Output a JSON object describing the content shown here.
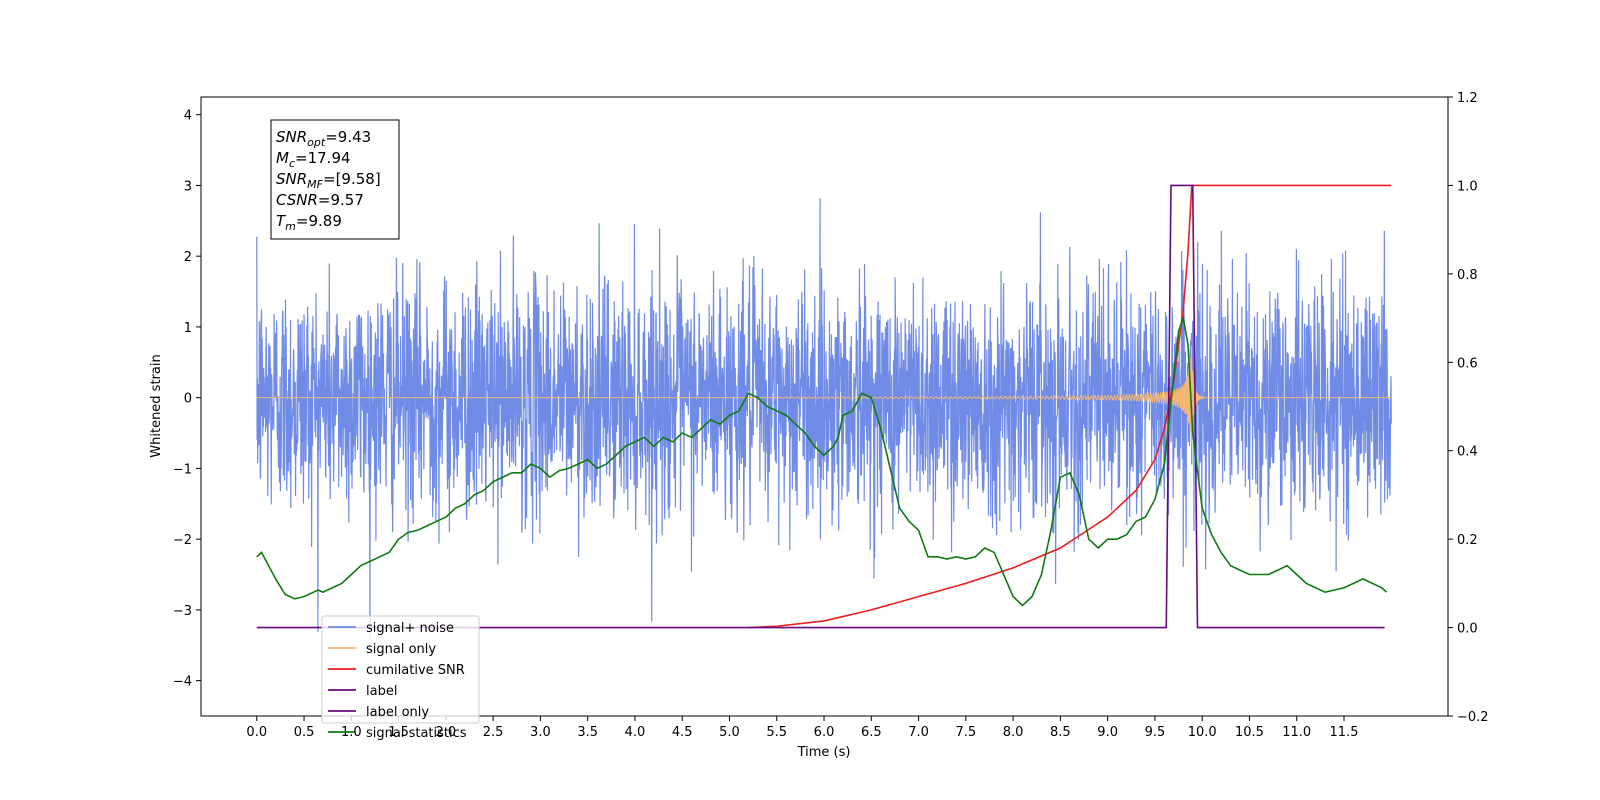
{
  "chart_data": {
    "type": "line",
    "xlabel": "Time (s)",
    "ylabel_left": "Whitened strain",
    "ylabel_right": "",
    "x_ticks": [
      "0.0",
      "0.5",
      "1.0",
      "1.5",
      "2.0",
      "2.5",
      "3.0",
      "3.5",
      "4.0",
      "4.5",
      "5.0",
      "5.5",
      "6.0",
      "6.5",
      "7.0",
      "7.5",
      "8.0",
      "8.5",
      "9.0",
      "9.5",
      "10.0",
      "10.5",
      "11.0",
      "11.5"
    ],
    "x_tick_values": [
      0.0,
      0.5,
      1.0,
      1.5,
      2.0,
      2.5,
      3.0,
      3.5,
      4.0,
      4.5,
      5.0,
      5.5,
      6.0,
      6.5,
      7.0,
      7.5,
      8.0,
      8.5,
      9.0,
      9.5,
      10.0,
      10.5,
      11.0,
      11.5
    ],
    "y_left_ticks": [
      "4",
      "3",
      "2",
      "1",
      "0",
      "−1",
      "−2",
      "−3",
      "−4"
    ],
    "y_left_tick_values": [
      4,
      3,
      2,
      1,
      0,
      -1,
      -2,
      -3,
      -4
    ],
    "y_right_ticks": [
      "1.2",
      "1.0",
      "0.8",
      "0.6",
      "0.4",
      "0.2",
      "0.0",
      "−0.2"
    ],
    "y_right_tick_values": [
      1.2,
      1.0,
      0.8,
      0.6,
      0.4,
      0.2,
      0.0,
      -0.2
    ],
    "xlim": [
      -0.59,
      12.6
    ],
    "ylim_left": [
      -4.5,
      4.25
    ],
    "ylim_right": [
      -0.2,
      1.2
    ],
    "grid": false,
    "legend_position": "lower-left",
    "info_box": {
      "lines": [
        {
          "sym": "SNR",
          "sub": "opt",
          "val": "=9.43"
        },
        {
          "sym": "M",
          "sub": "c",
          "val": "=17.94"
        },
        {
          "sym": "SNR",
          "sub": "MF",
          "val": "=[9.58]"
        },
        {
          "sym": "CSNR",
          "sub": "",
          "val": "=9.57"
        },
        {
          "sym": "T",
          "sub": "m",
          "val": "=9.89"
        }
      ]
    },
    "series": [
      {
        "name": "signal+ noise",
        "color": "#6f8be6",
        "axis": "left",
        "description_noise_std": 0.82,
        "x_range": [
          0,
          12
        ]
      },
      {
        "name": "signal only",
        "color": "#f5b871",
        "axis": "left",
        "merger_time": 9.89
      },
      {
        "name": "cumilative SNR",
        "color": "#ee1c1c",
        "axis": "right",
        "x": [
          5.2,
          5.5,
          6.0,
          6.5,
          7.0,
          7.5,
          8.0,
          8.5,
          9.0,
          9.3,
          9.5,
          9.6,
          9.7,
          9.8,
          9.85,
          9.89,
          12.0
        ],
        "y": [
          0.0,
          0.003,
          0.015,
          0.04,
          0.07,
          0.1,
          0.135,
          0.18,
          0.25,
          0.31,
          0.38,
          0.45,
          0.56,
          0.72,
          0.85,
          1.0,
          1.0
        ]
      },
      {
        "name": "label",
        "color": "#6a0a80",
        "axis": "right",
        "x": [
          0.0,
          9.62,
          9.67,
          9.9,
          9.95,
          11.93
        ],
        "y": [
          0,
          0,
          1,
          1,
          0,
          0
        ]
      },
      {
        "name": "label only",
        "color": "#6a0a80",
        "axis": "right"
      },
      {
        "name": "signal statistics",
        "color": "#107a10",
        "axis": "right",
        "x": [
          0.0,
          0.05,
          0.1,
          0.2,
          0.3,
          0.4,
          0.5,
          0.6,
          0.65,
          0.7,
          0.8,
          0.9,
          1.0,
          1.1,
          1.2,
          1.3,
          1.4,
          1.5,
          1.6,
          1.7,
          1.8,
          1.9,
          2.0,
          2.1,
          2.2,
          2.3,
          2.4,
          2.5,
          2.6,
          2.7,
          2.8,
          2.9,
          3.0,
          3.1,
          3.2,
          3.3,
          3.4,
          3.5,
          3.6,
          3.7,
          3.8,
          3.9,
          4.0,
          4.1,
          4.2,
          4.3,
          4.4,
          4.5,
          4.6,
          4.7,
          4.8,
          4.9,
          5.0,
          5.1,
          5.2,
          5.3,
          5.4,
          5.5,
          5.6,
          5.7,
          5.8,
          5.9,
          6.0,
          6.1,
          6.15,
          6.2,
          6.3,
          6.4,
          6.5,
          6.6,
          6.7,
          6.8,
          6.9,
          7.0,
          7.1,
          7.2,
          7.3,
          7.4,
          7.5,
          7.6,
          7.7,
          7.8,
          7.9,
          8.0,
          8.1,
          8.2,
          8.3,
          8.4,
          8.5,
          8.6,
          8.7,
          8.8,
          8.9,
          9.0,
          9.1,
          9.2,
          9.3,
          9.4,
          9.5,
          9.6,
          9.7,
          9.75,
          9.8,
          9.85,
          9.9,
          10.0,
          10.1,
          10.2,
          10.3,
          10.4,
          10.5,
          10.6,
          10.7,
          10.8,
          10.9,
          11.0,
          11.1,
          11.2,
          11.3,
          11.4,
          11.5,
          11.6,
          11.7,
          11.8,
          11.9,
          11.95
        ],
        "y": [
          0.16,
          0.17,
          0.15,
          0.11,
          0.075,
          0.065,
          0.07,
          0.08,
          0.085,
          0.08,
          0.09,
          0.1,
          0.12,
          0.14,
          0.15,
          0.16,
          0.17,
          0.2,
          0.215,
          0.22,
          0.23,
          0.24,
          0.25,
          0.27,
          0.28,
          0.3,
          0.31,
          0.33,
          0.34,
          0.35,
          0.35,
          0.37,
          0.36,
          0.34,
          0.355,
          0.36,
          0.37,
          0.38,
          0.36,
          0.37,
          0.39,
          0.41,
          0.42,
          0.43,
          0.41,
          0.43,
          0.42,
          0.44,
          0.43,
          0.45,
          0.47,
          0.46,
          0.48,
          0.49,
          0.53,
          0.52,
          0.5,
          0.49,
          0.48,
          0.46,
          0.44,
          0.41,
          0.39,
          0.41,
          0.43,
          0.48,
          0.49,
          0.53,
          0.52,
          0.45,
          0.36,
          0.27,
          0.24,
          0.22,
          0.16,
          0.16,
          0.155,
          0.16,
          0.155,
          0.16,
          0.18,
          0.17,
          0.12,
          0.07,
          0.05,
          0.07,
          0.12,
          0.22,
          0.34,
          0.35,
          0.3,
          0.2,
          0.18,
          0.2,
          0.2,
          0.21,
          0.24,
          0.25,
          0.29,
          0.37,
          0.57,
          0.67,
          0.7,
          0.64,
          0.44,
          0.27,
          0.21,
          0.17,
          0.14,
          0.13,
          0.12,
          0.12,
          0.12,
          0.13,
          0.14,
          0.12,
          0.1,
          0.09,
          0.08,
          0.085,
          0.09,
          0.1,
          0.11,
          0.1,
          0.09,
          0.08
        ]
      }
    ]
  }
}
